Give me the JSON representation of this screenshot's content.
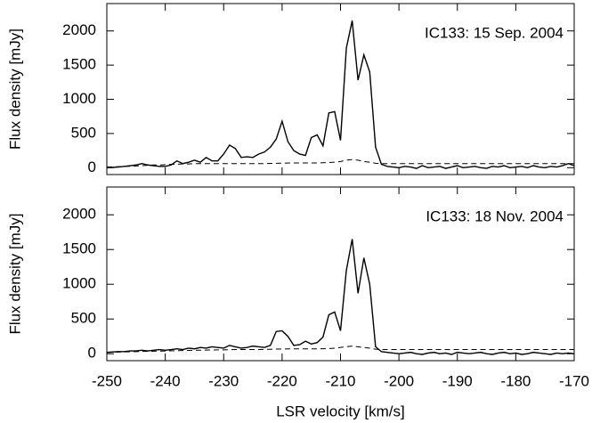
{
  "chart_data": [
    {
      "type": "line",
      "ylabel": "Flux density [mJy]",
      "annotation": "IC133: 15 Sep. 2004",
      "xlim": [
        -250,
        -170
      ],
      "xticks": [
        -250,
        -240,
        -230,
        -220,
        -210,
        -200,
        -190,
        -180,
        -170
      ],
      "ylim": [
        -100,
        2400
      ],
      "yticks": [
        0,
        500,
        1000,
        1500,
        2000
      ],
      "x": [
        -250,
        -249,
        -248,
        -247,
        -246,
        -245,
        -244,
        -243,
        -242,
        -241,
        -240,
        -239,
        -238,
        -237,
        -236,
        -235,
        -234,
        -233,
        -232,
        -231,
        -230,
        -229,
        -228,
        -227,
        -226,
        -225,
        -224,
        -223,
        -222,
        -221,
        -220,
        -219,
        -218,
        -217,
        -216,
        -215,
        -214,
        -213,
        -212,
        -211,
        -210,
        -209,
        -208,
        -207,
        -206,
        -205,
        -204,
        -203,
        -202,
        -201,
        -200,
        -199,
        -198,
        -197,
        -196,
        -195,
        -194,
        -193,
        -192,
        -191,
        -190,
        -189,
        -188,
        -187,
        -186,
        -185,
        -184,
        -183,
        -182,
        -181,
        -180,
        -179,
        -178,
        -177,
        -176,
        -175,
        -174,
        -173,
        -172,
        -171,
        -170
      ],
      "series": [
        {
          "color": "#000000",
          "dash": false,
          "values": [
            0,
            5,
            10,
            20,
            30,
            40,
            60,
            40,
            30,
            20,
            20,
            40,
            100,
            60,
            80,
            110,
            80,
            150,
            100,
            100,
            200,
            330,
            280,
            150,
            160,
            150,
            200,
            230,
            300,
            420,
            680,
            380,
            250,
            200,
            180,
            440,
            480,
            320,
            800,
            820,
            400,
            1750,
            2150,
            1280,
            1650,
            1400,
            300,
            50,
            20,
            10,
            0,
            20,
            10,
            -10,
            30,
            0,
            10,
            20,
            -10,
            10,
            30,
            0,
            10,
            20,
            0,
            -10,
            20,
            10,
            30,
            0,
            10,
            20,
            0,
            30,
            10,
            0,
            20,
            10,
            30,
            60,
            30
          ]
        },
        {
          "color": "#000000",
          "dash": true,
          "values": [
            10,
            12,
            15,
            18,
            20,
            25,
            30,
            35,
            40,
            40,
            45,
            50,
            50,
            55,
            55,
            60,
            60,
            60,
            60,
            60,
            60,
            60,
            60,
            60,
            60,
            60,
            60,
            60,
            62,
            64,
            66,
            68,
            70,
            70,
            70,
            70,
            70,
            72,
            75,
            80,
            90,
            110,
            120,
            110,
            90,
            80,
            65,
            60,
            60,
            60,
            60,
            60,
            60,
            60,
            60,
            60,
            60,
            60,
            60,
            60,
            60,
            60,
            60,
            60,
            60,
            60,
            60,
            60,
            60,
            60,
            60,
            60,
            60,
            60,
            60,
            60,
            60,
            60,
            60,
            60,
            60
          ]
        }
      ]
    },
    {
      "type": "line",
      "ylabel": "Flux density [mJy]",
      "annotation": "IC133: 18 Nov. 2004",
      "xlabel": "LSR velocity [km/s]",
      "xlim": [
        -250,
        -170
      ],
      "xticks": [
        -250,
        -240,
        -230,
        -220,
        -210,
        -200,
        -190,
        -180,
        -170
      ],
      "ylim": [
        -100,
        2400
      ],
      "yticks": [
        0,
        500,
        1000,
        1500,
        2000
      ],
      "x": [
        -250,
        -249,
        -248,
        -247,
        -246,
        -245,
        -244,
        -243,
        -242,
        -241,
        -240,
        -239,
        -238,
        -237,
        -236,
        -235,
        -234,
        -233,
        -232,
        -231,
        -230,
        -229,
        -228,
        -227,
        -226,
        -225,
        -224,
        -223,
        -222,
        -221,
        -220,
        -219,
        -218,
        -217,
        -216,
        -215,
        -214,
        -213,
        -212,
        -211,
        -210,
        -209,
        -208,
        -207,
        -206,
        -205,
        -204,
        -203,
        -202,
        -201,
        -200,
        -199,
        -198,
        -197,
        -196,
        -195,
        -194,
        -193,
        -192,
        -191,
        -190,
        -189,
        -188,
        -187,
        -186,
        -185,
        -184,
        -183,
        -182,
        -181,
        -180,
        -179,
        -178,
        -177,
        -176,
        -175,
        -174,
        -173,
        -172,
        -171,
        -170
      ],
      "series": [
        {
          "color": "#000000",
          "dash": false,
          "values": [
            20,
            25,
            30,
            30,
            40,
            40,
            50,
            40,
            50,
            60,
            50,
            60,
            70,
            60,
            80,
            70,
            90,
            80,
            100,
            90,
            80,
            120,
            100,
            80,
            90,
            110,
            100,
            90,
            120,
            320,
            330,
            250,
            120,
            130,
            180,
            140,
            160,
            240,
            560,
            600,
            330,
            1200,
            1650,
            870,
            1380,
            1000,
            100,
            30,
            20,
            10,
            0,
            10,
            20,
            0,
            -10,
            10,
            20,
            0,
            10,
            -10,
            20,
            10,
            0,
            10,
            20,
            0,
            -10,
            10,
            20,
            0,
            10,
            -10,
            0,
            20,
            10,
            0,
            -10,
            10,
            0,
            10,
            0
          ]
        },
        {
          "color": "#000000",
          "dash": true,
          "values": [
            20,
            22,
            24,
            26,
            28,
            30,
            32,
            34,
            36,
            38,
            40,
            42,
            44,
            46,
            48,
            50,
            50,
            52,
            54,
            55,
            56,
            58,
            60,
            60,
            60,
            60,
            60,
            62,
            64,
            66,
            68,
            70,
            70,
            70,
            70,
            70,
            70,
            72,
            75,
            80,
            90,
            100,
            110,
            100,
            90,
            80,
            65,
            60,
            60,
            60,
            60,
            60,
            60,
            60,
            60,
            60,
            60,
            60,
            60,
            60,
            60,
            60,
            60,
            60,
            60,
            60,
            60,
            60,
            60,
            60,
            60,
            60,
            60,
            60,
            60,
            60,
            60,
            60,
            60,
            60,
            60
          ]
        }
      ]
    }
  ]
}
